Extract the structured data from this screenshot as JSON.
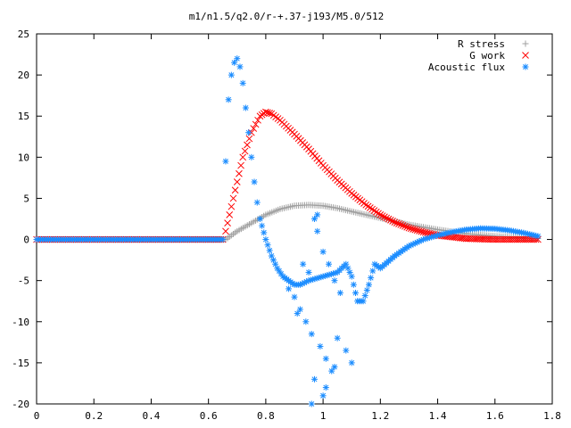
{
  "chart_data": {
    "type": "scatter",
    "title": "m1/n1.5/q2.0/r-+.37-j193/M5.0/512",
    "xlabel": "",
    "ylabel": "",
    "xlim": [
      0,
      1.8
    ],
    "ylim": [
      -20,
      25
    ],
    "x_ticks": [
      "0",
      "0.2",
      "0.4",
      "0.6",
      "0.8",
      "1",
      "1.2",
      "1.4",
      "1.6",
      "1.8"
    ],
    "y_ticks": [
      "25",
      "20",
      "15",
      "10",
      "5",
      "0",
      "-5",
      "-10",
      "-15",
      "-20"
    ],
    "grid": false,
    "legend_position": "top-right",
    "series": [
      {
        "name": "R stress",
        "marker": "plus",
        "color": "#a0a0a0",
        "x": [
          0.0,
          0.66,
          0.7,
          0.75,
          0.8,
          0.85,
          0.9,
          0.95,
          1.0,
          1.05,
          1.1,
          1.15,
          1.2,
          1.3,
          1.4,
          1.5,
          1.6,
          1.7,
          1.75
        ],
        "y": [
          0.0,
          0.0,
          1.0,
          2.0,
          3.0,
          3.7,
          4.1,
          4.2,
          4.1,
          3.8,
          3.4,
          3.0,
          2.6,
          1.8,
          1.2,
          0.7,
          0.4,
          0.2,
          0.1
        ]
      },
      {
        "name": "G work",
        "marker": "cross",
        "color": "#ff0000",
        "x": [
          0.0,
          0.65,
          0.66,
          0.68,
          0.7,
          0.72,
          0.75,
          0.78,
          0.8,
          0.82,
          0.85,
          0.9,
          0.95,
          1.0,
          1.05,
          1.1,
          1.15,
          1.2,
          1.25,
          1.3,
          1.35,
          1.4,
          1.45,
          1.5,
          1.6,
          1.7,
          1.75
        ],
        "y": [
          0.0,
          0.0,
          1.0,
          4.0,
          7.0,
          10.0,
          13.0,
          15.0,
          15.5,
          15.3,
          14.5,
          12.8,
          11.0,
          9.0,
          7.2,
          5.6,
          4.2,
          3.0,
          2.1,
          1.4,
          0.9,
          0.5,
          0.3,
          0.1,
          0.0,
          0.0,
          0.0
        ]
      },
      {
        "name": "Acoustic flux",
        "marker": "star",
        "color": "#1a8cff",
        "x": [
          0.0,
          0.65,
          0.66,
          0.67,
          0.68,
          0.69,
          0.7,
          0.71,
          0.72,
          0.73,
          0.74,
          0.75,
          0.76,
          0.77,
          0.78,
          0.8,
          0.82,
          0.84,
          0.86,
          0.88,
          0.9,
          0.92,
          0.95,
          1.0,
          1.05,
          1.08,
          1.1,
          1.12,
          1.14,
          1.16,
          1.18,
          1.2,
          1.25,
          1.3,
          1.35,
          1.4,
          1.45,
          1.5,
          1.55,
          1.6,
          1.65,
          1.7,
          1.75,
          0.93,
          0.95,
          0.97,
          0.98,
          1.0,
          1.02,
          1.04,
          1.06,
          0.9,
          0.92,
          0.94,
          0.96,
          0.99,
          1.01,
          1.03,
          0.88,
          0.91,
          1.05,
          1.08,
          1.1,
          0.97,
          1.0,
          0.96,
          0.98,
          1.01,
          1.04
        ],
        "y": [
          0.0,
          0.0,
          9.5,
          17.0,
          20.0,
          21.5,
          22.0,
          21.0,
          19.0,
          16.0,
          13.0,
          10.0,
          7.0,
          4.5,
          2.5,
          0.0,
          -2.0,
          -3.5,
          -4.5,
          -5.0,
          -5.5,
          -5.5,
          -5.0,
          -4.5,
          -4.0,
          -3.0,
          -4.5,
          -7.5,
          -7.5,
          -5.5,
          -3.0,
          -3.5,
          -2.0,
          -0.8,
          0.0,
          0.5,
          0.9,
          1.2,
          1.35,
          1.3,
          1.1,
          0.8,
          0.4,
          -3.0,
          -4.0,
          2.5,
          1.0,
          -1.5,
          -3.0,
          -5.0,
          -6.5,
          -7.0,
          -8.5,
          -10.0,
          -11.5,
          -13.0,
          -14.5,
          -16.0,
          -6.0,
          -9.0,
          -12.0,
          -13.5,
          -15.0,
          -17.0,
          -19.0,
          -20.0,
          3.0,
          -18.0,
          -15.5
        ]
      }
    ]
  }
}
